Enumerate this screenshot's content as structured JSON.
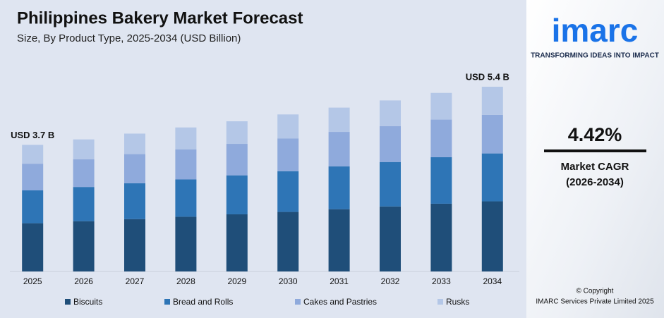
{
  "chart_data": {
    "type": "stacked_bar",
    "title": "Philippines Bakery Market Forecast",
    "subtitle": "Size, By Product Type, 2025-2034 (USD Billion)",
    "categories": [
      "2025",
      "2026",
      "2027",
      "2028",
      "2029",
      "2030",
      "2031",
      "2032",
      "2033",
      "2034"
    ],
    "series": [
      {
        "name": "Biscuits",
        "color": "#1f4e79",
        "values": [
          1.41,
          1.47,
          1.53,
          1.6,
          1.67,
          1.74,
          1.82,
          1.9,
          1.98,
          2.05
        ]
      },
      {
        "name": "Bread and Rolls",
        "color": "#2e75b6",
        "values": [
          0.96,
          1.0,
          1.05,
          1.09,
          1.14,
          1.19,
          1.25,
          1.3,
          1.36,
          1.4
        ]
      },
      {
        "name": "Cakes and Pastries",
        "color": "#8faadc",
        "values": [
          0.78,
          0.81,
          0.85,
          0.88,
          0.92,
          0.96,
          1.01,
          1.05,
          1.1,
          1.13
        ]
      },
      {
        "name": "Rusks",
        "color": "#b4c7e7",
        "values": [
          0.55,
          0.58,
          0.6,
          0.64,
          0.66,
          0.7,
          0.71,
          0.75,
          0.78,
          0.82
        ]
      }
    ],
    "annotations": [
      "USD 3.7 B",
      "USD 5.4 B"
    ]
  },
  "sidebar": {
    "logo": "imarc",
    "tagline": "TRANSFORMING IDEAS INTO IMPACT",
    "cagr": "4.42%",
    "cagr_label": "Market CAGR",
    "cagr_period": "(2026-2034)",
    "copyright": "© Copyright",
    "company": "IMARC Services Private Limited 2025"
  }
}
